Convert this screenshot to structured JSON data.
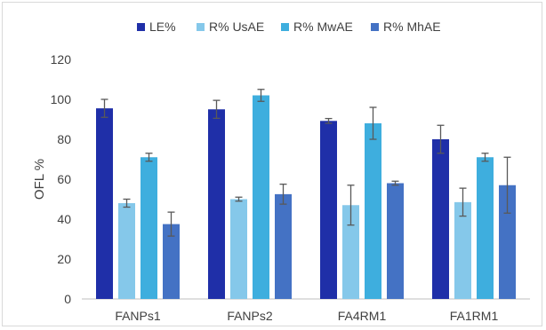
{
  "chart_data": {
    "type": "bar",
    "title": "",
    "xlabel": "",
    "ylabel": "OFL %",
    "ylim": [
      0,
      120
    ],
    "yticks": [
      0,
      20,
      40,
      60,
      80,
      100,
      120
    ],
    "grid": false,
    "legend": "top",
    "categories": [
      "FANPs1",
      "FANPs2",
      "FA4RM1",
      "FA1RM1"
    ],
    "series": [
      {
        "name": "LE%",
        "color": "#1f2fa8",
        "values": [
          95.5,
          95.0,
          89.2,
          80.0
        ],
        "errors": [
          4.5,
          4.5,
          1.2,
          7.0
        ]
      },
      {
        "name": "R% UsAE",
        "color": "#85c8ea",
        "values": [
          48.0,
          50.0,
          47.0,
          48.5
        ],
        "errors": [
          2.0,
          1.0,
          10.0,
          7.0
        ]
      },
      {
        "name": "R% MwAE",
        "color": "#3eaede",
        "values": [
          71.0,
          102.0,
          88.0,
          71.0
        ],
        "errors": [
          2.0,
          3.0,
          8.0,
          2.0
        ]
      },
      {
        "name": "R% MhAE",
        "color": "#4472c4",
        "values": [
          37.5,
          52.5,
          58.0,
          57.0
        ],
        "errors": [
          6.0,
          5.0,
          1.0,
          14.0
        ]
      }
    ]
  }
}
